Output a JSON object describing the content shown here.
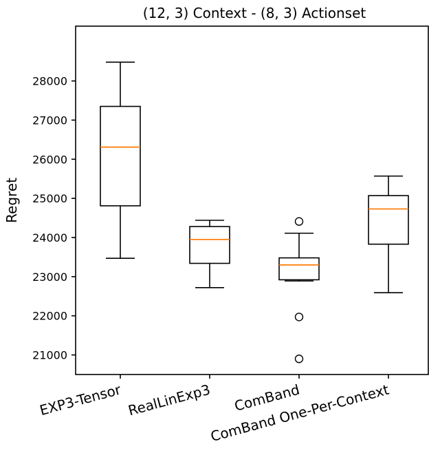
{
  "chart_data": {
    "type": "boxplot",
    "title": "(12, 3)  Context - (8, 3) Actionset",
    "xlabel": "",
    "ylabel": "Regret",
    "ylim": [
      20500,
      29400
    ],
    "yticks": [
      21000,
      22000,
      23000,
      24000,
      25000,
      26000,
      27000,
      28000
    ],
    "categories": [
      "EXP3-Tensor",
      "RealLinExp3",
      "ComBand",
      "ComBand One-Per-Context"
    ],
    "boxes": [
      {
        "whisker_low": 23470,
        "q1": 24810,
        "median": 26310,
        "q3": 27350,
        "whisker_high": 28480,
        "outliers": []
      },
      {
        "whisker_low": 22720,
        "q1": 23340,
        "median": 23950,
        "q3": 24280,
        "whisker_high": 24440,
        "outliers": []
      },
      {
        "whisker_low": 22890,
        "q1": 22920,
        "median": 23300,
        "q3": 23480,
        "whisker_high": 24110,
        "outliers": [
          24410,
          21970,
          20900
        ]
      },
      {
        "whisker_low": 22590,
        "q1": 23830,
        "median": 24730,
        "q3": 25070,
        "whisker_high": 25570,
        "outliers": []
      }
    ],
    "grid": false,
    "colors": {
      "box": "#000000",
      "median": "#ff7f0e",
      "axis": "#000000",
      "outlier": "#000000"
    }
  }
}
